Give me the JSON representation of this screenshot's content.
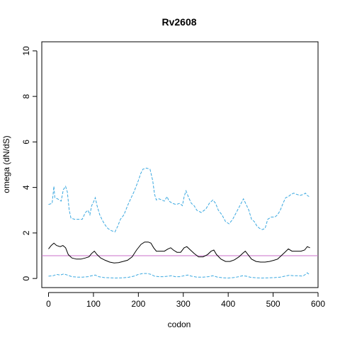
{
  "chart_data": {
    "type": "line",
    "title": "Rv2608",
    "xlabel": "codon",
    "ylabel": "omega (dN/dS)",
    "xlim": [
      -15,
      600
    ],
    "ylim": [
      -0.4,
      10.4
    ],
    "xticks": [
      "0",
      "100",
      "200",
      "300",
      "400",
      "500",
      "600"
    ],
    "yticks": [
      "0",
      "2",
      "4",
      "6",
      "8",
      "10"
    ],
    "reference_line": {
      "y": 1,
      "color": "#c86fc8"
    },
    "series": [
      {
        "role": "upper",
        "color": "#3aa8e0",
        "style": "dashed",
        "points": [
          [
            0,
            3.25
          ],
          [
            8,
            3.3
          ],
          [
            12,
            4.05
          ],
          [
            14,
            3.55
          ],
          [
            20,
            3.5
          ],
          [
            28,
            3.4
          ],
          [
            33,
            3.9
          ],
          [
            38,
            4.05
          ],
          [
            42,
            3.8
          ],
          [
            46,
            3.0
          ],
          [
            50,
            2.65
          ],
          [
            58,
            2.6
          ],
          [
            66,
            2.6
          ],
          [
            75,
            2.6
          ],
          [
            82,
            2.9
          ],
          [
            88,
            3.0
          ],
          [
            92,
            2.8
          ],
          [
            96,
            3.2
          ],
          [
            100,
            3.35
          ],
          [
            104,
            3.55
          ],
          [
            108,
            3.2
          ],
          [
            114,
            2.8
          ],
          [
            120,
            2.55
          ],
          [
            126,
            2.35
          ],
          [
            132,
            2.2
          ],
          [
            140,
            2.1
          ],
          [
            148,
            2.05
          ],
          [
            154,
            2.3
          ],
          [
            160,
            2.6
          ],
          [
            168,
            2.8
          ],
          [
            176,
            3.2
          ],
          [
            184,
            3.55
          ],
          [
            190,
            3.8
          ],
          [
            196,
            4.1
          ],
          [
            200,
            4.3
          ],
          [
            205,
            4.6
          ],
          [
            210,
            4.8
          ],
          [
            218,
            4.85
          ],
          [
            226,
            4.8
          ],
          [
            232,
            4.3
          ],
          [
            236,
            3.7
          ],
          [
            240,
            3.45
          ],
          [
            246,
            3.5
          ],
          [
            252,
            3.45
          ],
          [
            258,
            3.4
          ],
          [
            264,
            3.6
          ],
          [
            268,
            3.4
          ],
          [
            276,
            3.3
          ],
          [
            284,
            3.25
          ],
          [
            292,
            3.3
          ],
          [
            298,
            3.2
          ],
          [
            302,
            3.6
          ],
          [
            306,
            3.85
          ],
          [
            312,
            3.55
          ],
          [
            318,
            3.3
          ],
          [
            324,
            3.2
          ],
          [
            330,
            3.0
          ],
          [
            340,
            2.9
          ],
          [
            350,
            3.05
          ],
          [
            358,
            3.3
          ],
          [
            366,
            3.45
          ],
          [
            372,
            3.3
          ],
          [
            378,
            3.0
          ],
          [
            386,
            2.8
          ],
          [
            394,
            2.5
          ],
          [
            402,
            2.4
          ],
          [
            410,
            2.6
          ],
          [
            418,
            2.9
          ],
          [
            426,
            3.2
          ],
          [
            434,
            3.5
          ],
          [
            440,
            3.25
          ],
          [
            446,
            3.0
          ],
          [
            452,
            2.6
          ],
          [
            458,
            2.5
          ],
          [
            464,
            2.3
          ],
          [
            470,
            2.2
          ],
          [
            476,
            2.15
          ],
          [
            482,
            2.2
          ],
          [
            488,
            2.6
          ],
          [
            496,
            2.7
          ],
          [
            504,
            2.7
          ],
          [
            510,
            2.8
          ],
          [
            516,
            3.0
          ],
          [
            522,
            3.3
          ],
          [
            528,
            3.55
          ],
          [
            534,
            3.6
          ],
          [
            540,
            3.7
          ],
          [
            546,
            3.75
          ],
          [
            552,
            3.7
          ],
          [
            560,
            3.65
          ],
          [
            568,
            3.7
          ],
          [
            572,
            3.75
          ],
          [
            576,
            3.65
          ],
          [
            580,
            3.6
          ]
        ]
      },
      {
        "role": "estimate",
        "color": "#000000",
        "style": "solid",
        "points": [
          [
            0,
            1.3
          ],
          [
            6,
            1.45
          ],
          [
            12,
            1.55
          ],
          [
            18,
            1.45
          ],
          [
            26,
            1.4
          ],
          [
            32,
            1.45
          ],
          [
            38,
            1.35
          ],
          [
            44,
            1.05
          ],
          [
            52,
            0.9
          ],
          [
            62,
            0.85
          ],
          [
            72,
            0.85
          ],
          [
            82,
            0.9
          ],
          [
            90,
            0.95
          ],
          [
            96,
            1.1
          ],
          [
            102,
            1.2
          ],
          [
            108,
            1.05
          ],
          [
            116,
            0.9
          ],
          [
            126,
            0.8
          ],
          [
            136,
            0.72
          ],
          [
            146,
            0.68
          ],
          [
            156,
            0.7
          ],
          [
            166,
            0.75
          ],
          [
            176,
            0.8
          ],
          [
            186,
            0.95
          ],
          [
            196,
            1.25
          ],
          [
            206,
            1.5
          ],
          [
            214,
            1.6
          ],
          [
            222,
            1.6
          ],
          [
            228,
            1.55
          ],
          [
            234,
            1.35
          ],
          [
            240,
            1.2
          ],
          [
            250,
            1.2
          ],
          [
            258,
            1.2
          ],
          [
            266,
            1.3
          ],
          [
            272,
            1.35
          ],
          [
            278,
            1.25
          ],
          [
            286,
            1.15
          ],
          [
            294,
            1.15
          ],
          [
            302,
            1.35
          ],
          [
            308,
            1.4
          ],
          [
            316,
            1.25
          ],
          [
            324,
            1.1
          ],
          [
            334,
            0.95
          ],
          [
            344,
            0.95
          ],
          [
            354,
            1.05
          ],
          [
            362,
            1.2
          ],
          [
            368,
            1.25
          ],
          [
            374,
            1.05
          ],
          [
            384,
            0.85
          ],
          [
            394,
            0.75
          ],
          [
            404,
            0.75
          ],
          [
            414,
            0.82
          ],
          [
            424,
            0.95
          ],
          [
            432,
            1.1
          ],
          [
            438,
            1.2
          ],
          [
            444,
            1.05
          ],
          [
            452,
            0.85
          ],
          [
            462,
            0.75
          ],
          [
            472,
            0.72
          ],
          [
            482,
            0.72
          ],
          [
            492,
            0.75
          ],
          [
            502,
            0.8
          ],
          [
            510,
            0.85
          ],
          [
            518,
            1.0
          ],
          [
            526,
            1.15
          ],
          [
            534,
            1.3
          ],
          [
            542,
            1.2
          ],
          [
            552,
            1.2
          ],
          [
            562,
            1.2
          ],
          [
            570,
            1.25
          ],
          [
            576,
            1.4
          ],
          [
            582,
            1.35
          ]
        ]
      },
      {
        "role": "lower",
        "color": "#3aa8e0",
        "style": "dashed",
        "points": [
          [
            0,
            0.1
          ],
          [
            10,
            0.12
          ],
          [
            18,
            0.18
          ],
          [
            26,
            0.15
          ],
          [
            34,
            0.2
          ],
          [
            42,
            0.15
          ],
          [
            52,
            0.08
          ],
          [
            64,
            0.06
          ],
          [
            76,
            0.06
          ],
          [
            88,
            0.08
          ],
          [
            96,
            0.12
          ],
          [
            104,
            0.15
          ],
          [
            112,
            0.08
          ],
          [
            124,
            0.04
          ],
          [
            136,
            0.03
          ],
          [
            150,
            0.02
          ],
          [
            164,
            0.03
          ],
          [
            178,
            0.05
          ],
          [
            190,
            0.1
          ],
          [
            200,
            0.18
          ],
          [
            210,
            0.22
          ],
          [
            220,
            0.22
          ],
          [
            228,
            0.18
          ],
          [
            236,
            0.1
          ],
          [
            246,
            0.08
          ],
          [
            256,
            0.08
          ],
          [
            266,
            0.1
          ],
          [
            274,
            0.12
          ],
          [
            282,
            0.08
          ],
          [
            292,
            0.08
          ],
          [
            302,
            0.12
          ],
          [
            310,
            0.15
          ],
          [
            318,
            0.1
          ],
          [
            330,
            0.06
          ],
          [
            344,
            0.06
          ],
          [
            356,
            0.08
          ],
          [
            366,
            0.12
          ],
          [
            376,
            0.06
          ],
          [
            388,
            0.03
          ],
          [
            400,
            0.02
          ],
          [
            412,
            0.04
          ],
          [
            424,
            0.08
          ],
          [
            432,
            0.12
          ],
          [
            440,
            0.1
          ],
          [
            450,
            0.05
          ],
          [
            462,
            0.03
          ],
          [
            476,
            0.02
          ],
          [
            490,
            0.03
          ],
          [
            504,
            0.04
          ],
          [
            516,
            0.06
          ],
          [
            526,
            0.1
          ],
          [
            536,
            0.14
          ],
          [
            546,
            0.12
          ],
          [
            556,
            0.12
          ],
          [
            566,
            0.1
          ],
          [
            572,
            0.18
          ],
          [
            576,
            0.25
          ],
          [
            582,
            0.15
          ]
        ]
      }
    ]
  }
}
